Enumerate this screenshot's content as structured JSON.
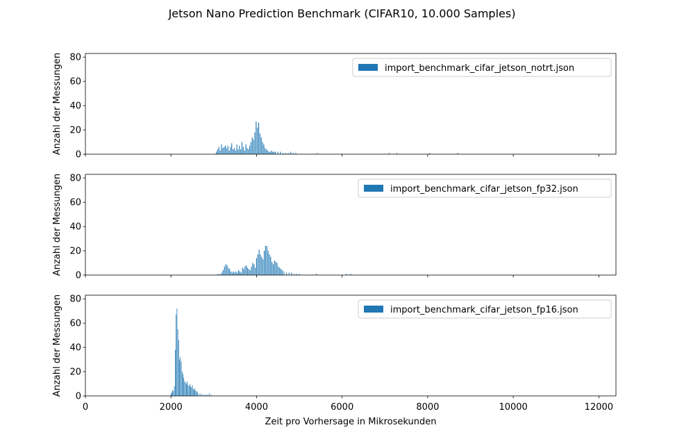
{
  "figure": {
    "title": "Jetson Nano Prediction Benchmark (CIFAR10, 10.000 Samples)",
    "xlabel": "Zeit pro Vorhersage in Mikrosekunden",
    "ylabel": "Anzahl der Messungen",
    "bar_color": "#1f77b4"
  },
  "chart_data": [
    {
      "type": "bar",
      "series": [
        {
          "name": "import_benchmark_cifar_jetson_notrt.json",
          "color": "#1f77b4"
        }
      ],
      "xlim": [
        0,
        12400
      ],
      "ylim": [
        0,
        83
      ],
      "xticks": [
        0,
        2000,
        4000,
        6000,
        8000,
        10000,
        12000
      ],
      "yticks": [
        0,
        20,
        40,
        60,
        80
      ],
      "legend": "upper right",
      "grid": false,
      "show_xtick_labels": false,
      "bar_width": 18,
      "x": [
        3060,
        3090,
        3120,
        3150,
        3180,
        3210,
        3240,
        3270,
        3300,
        3330,
        3360,
        3390,
        3420,
        3450,
        3480,
        3510,
        3540,
        3570,
        3600,
        3630,
        3660,
        3690,
        3720,
        3750,
        3780,
        3810,
        3840,
        3870,
        3900,
        3930,
        3960,
        3990,
        4020,
        4050,
        4080,
        4110,
        4140,
        4170,
        4200,
        4230,
        4260,
        4290,
        4320,
        4350,
        4380,
        4410,
        4440,
        4500,
        4560,
        4620,
        4680,
        4740,
        4800,
        4860,
        4920,
        5420,
        7100,
        7280,
        8050,
        8700
      ],
      "y": [
        2,
        4,
        6,
        3,
        8,
        5,
        6,
        7,
        5,
        7,
        3,
        6,
        9,
        4,
        5,
        3,
        8,
        4,
        7,
        4,
        10,
        6,
        3,
        8,
        5,
        4,
        7,
        10,
        14,
        12,
        18,
        27,
        22,
        26,
        17,
        14,
        10,
        8,
        5,
        4,
        3,
        2,
        2,
        3,
        2,
        2,
        2,
        2,
        2,
        1,
        1,
        1,
        2,
        1,
        1,
        1,
        1,
        1,
        1,
        1
      ]
    },
    {
      "type": "bar",
      "series": [
        {
          "name": "import_benchmark_cifar_jetson_fp32.json",
          "color": "#1f77b4"
        }
      ],
      "xlim": [
        0,
        12400
      ],
      "ylim": [
        0,
        83
      ],
      "xticks": [
        0,
        2000,
        4000,
        6000,
        8000,
        10000,
        12000
      ],
      "yticks": [
        0,
        20,
        40,
        60,
        80
      ],
      "legend": "upper right",
      "grid": false,
      "show_xtick_labels": false,
      "bar_width": 18,
      "x": [
        3100,
        3150,
        3190,
        3220,
        3250,
        3280,
        3310,
        3340,
        3370,
        3400,
        3430,
        3460,
        3490,
        3520,
        3550,
        3580,
        3610,
        3640,
        3670,
        3700,
        3730,
        3760,
        3790,
        3820,
        3850,
        3880,
        3910,
        3940,
        3970,
        4000,
        4030,
        4060,
        4090,
        4120,
        4150,
        4180,
        4210,
        4240,
        4270,
        4300,
        4330,
        4360,
        4390,
        4420,
        4450,
        4480,
        4510,
        4540,
        4570,
        4600,
        4640,
        4700,
        4760,
        4820,
        4880,
        4940,
        5000,
        5400,
        6100,
        6200
      ],
      "y": [
        1,
        1,
        2,
        4,
        7,
        9,
        8,
        6,
        5,
        3,
        2,
        3,
        2,
        3,
        2,
        4,
        3,
        2,
        6,
        5,
        7,
        8,
        6,
        5,
        4,
        7,
        10,
        9,
        6,
        14,
        17,
        21,
        17,
        15,
        13,
        20,
        24,
        24,
        20,
        17,
        15,
        11,
        9,
        12,
        11,
        10,
        7,
        6,
        5,
        4,
        3,
        2,
        2,
        2,
        1,
        1,
        1,
        1,
        1,
        1
      ]
    },
    {
      "type": "bar",
      "series": [
        {
          "name": "import_benchmark_cifar_jetson_fp16.json",
          "color": "#1f77b4"
        }
      ],
      "xlim": [
        0,
        12400
      ],
      "ylim": [
        0,
        83
      ],
      "xticks": [
        0,
        2000,
        4000,
        6000,
        8000,
        10000,
        12000
      ],
      "yticks": [
        0,
        20,
        40,
        60,
        80
      ],
      "legend": "upper right",
      "grid": false,
      "show_xtick_labels": true,
      "bar_width": 10,
      "x": [
        2000,
        2020,
        2040,
        2060,
        2080,
        2100,
        2120,
        2140,
        2160,
        2180,
        2200,
        2220,
        2240,
        2260,
        2280,
        2300,
        2320,
        2340,
        2360,
        2380,
        2400,
        2420,
        2440,
        2460,
        2480,
        2500,
        2520,
        2540,
        2560,
        2580,
        2600,
        2620,
        2660,
        2700,
        2740,
        2780,
        2820,
        2860,
        2900,
        2940
      ],
      "y": [
        2,
        3,
        5,
        4,
        8,
        38,
        67,
        72,
        55,
        46,
        30,
        32,
        28,
        20,
        18,
        15,
        12,
        11,
        10,
        12,
        9,
        8,
        10,
        8,
        7,
        9,
        6,
        5,
        6,
        4,
        4,
        3,
        2,
        2,
        1,
        1,
        1,
        1,
        2,
        1
      ]
    }
  ]
}
